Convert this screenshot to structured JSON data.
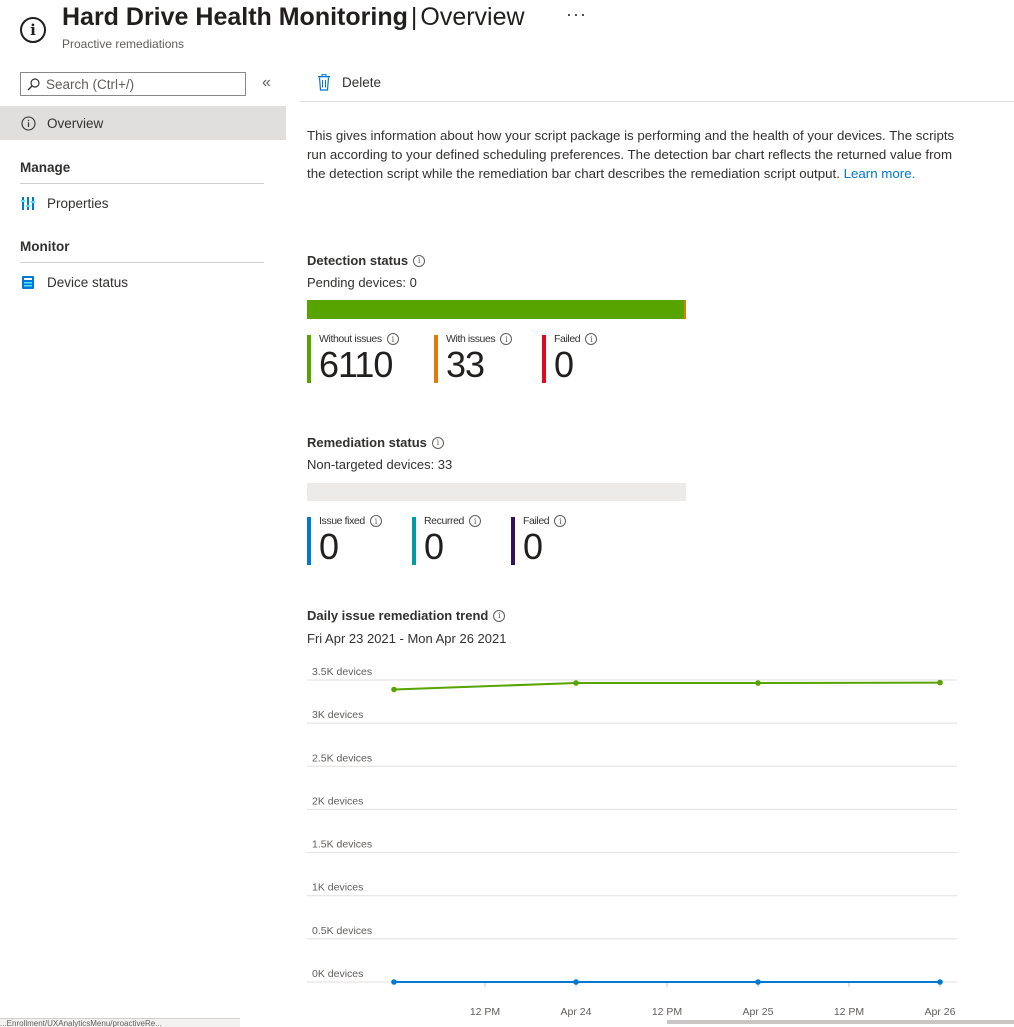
{
  "header": {
    "title_bold": "Hard Drive Health Monitoring",
    "title_sep": "|",
    "title_section": "Overview",
    "more": "···",
    "subtitle": "Proactive remediations"
  },
  "sidebar": {
    "search_placeholder": "Search (Ctrl+/)",
    "collapse": "«",
    "overview": "Overview",
    "groups": {
      "manage": "Manage",
      "monitor": "Monitor"
    },
    "properties": "Properties",
    "device_status": "Device status"
  },
  "toolbar": {
    "delete": "Delete"
  },
  "description": {
    "text": "This gives information about how your script package is performing and the health of your devices. The scripts run according to your defined scheduling preferences. The detection bar chart reflects the returned value from the detection script while the remediation bar chart describes the remediation script output. ",
    "link": "Learn more."
  },
  "detection": {
    "title": "Detection status",
    "pending": "Pending devices: 0",
    "kpis": [
      {
        "label": "Without issues",
        "value": "6110",
        "color": "#57a300"
      },
      {
        "label": "With issues",
        "value": "33",
        "color": "#e3780c"
      },
      {
        "label": "Failed",
        "value": "0",
        "color": "#e00b1c"
      }
    ],
    "bar": {
      "without_issues": 6110,
      "with_issues": 33,
      "failed": 0
    }
  },
  "remediation": {
    "title": "Remediation status",
    "nontargeted": "Non-targeted devices: 33",
    "kpis": [
      {
        "label": "Issue fixed",
        "value": "0",
        "color": "#0078d4"
      },
      {
        "label": "Recurred",
        "value": "0",
        "color": "#009ca6"
      },
      {
        "label": "Failed",
        "value": "0",
        "color": "#32145a"
      }
    ]
  },
  "chart_data": {
    "type": "line",
    "title": "Daily issue remediation trend",
    "subtitle": "Fri Apr 23 2021 - Mon Apr 26 2021",
    "y_ticks": [
      "3.5K devices",
      "3K devices",
      "2.5K devices",
      "2K devices",
      "1.5K devices",
      "1K devices",
      "0.5K devices",
      "0K devices"
    ],
    "ylim": [
      0,
      3500
    ],
    "x_ticks": [
      "12 PM",
      "Apr 24",
      "12 PM",
      "Apr 25",
      "12 PM",
      "Apr 26"
    ],
    "x": [
      "Apr 23",
      "Apr 24",
      "Apr 25",
      "Apr 26"
    ],
    "series": [
      {
        "values": [
          3390,
          3465,
          3465,
          3470
        ],
        "color": "#57a300"
      },
      {
        "values": [
          0,
          0,
          0,
          0
        ],
        "color": "#0078d4"
      }
    ],
    "grid": true
  },
  "footer": {
    "url": "...Enrollment/UXAnalyticsMenu/proactiveRe..."
  }
}
